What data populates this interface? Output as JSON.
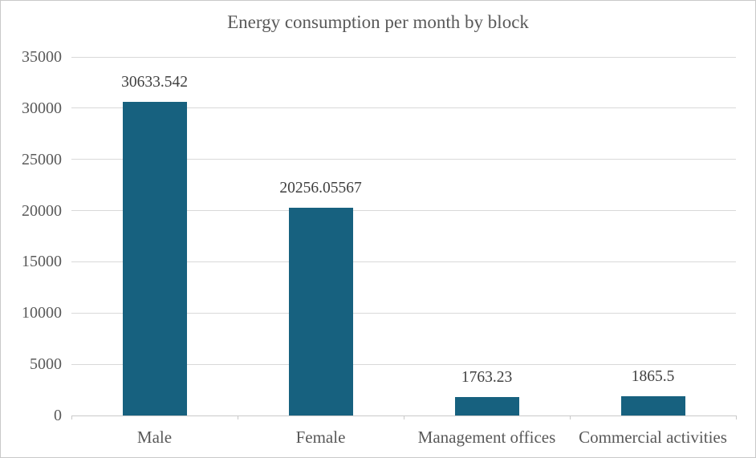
{
  "window": {
    "background": "#ffffff",
    "border_color": "#c9c9c9"
  },
  "chart_data": {
    "type": "bar",
    "title": "Energy consumption per month by block",
    "categories": [
      "Male",
      "Female",
      "Management offices",
      "Commercial activities"
    ],
    "values": [
      30633.542,
      20256.05567,
      1763.23,
      1865.5
    ],
    "data_labels": [
      "30633.542",
      "20256.05567",
      "1763.23",
      "1865.5"
    ],
    "xlabel": "",
    "ylabel": "",
    "ylim": [
      0,
      35000
    ],
    "ytick_interval": 5000,
    "yticks": [
      0,
      5000,
      10000,
      15000,
      20000,
      25000,
      30000,
      35000
    ],
    "grid": true,
    "legend_position": "none",
    "colors": {
      "bar": "#17617f",
      "gridline": "#d9d9d9",
      "axis_line": "#c9c9c9",
      "title_text": "#595959",
      "axis_text": "#595959",
      "data_label_text": "#3f3f3f"
    }
  }
}
